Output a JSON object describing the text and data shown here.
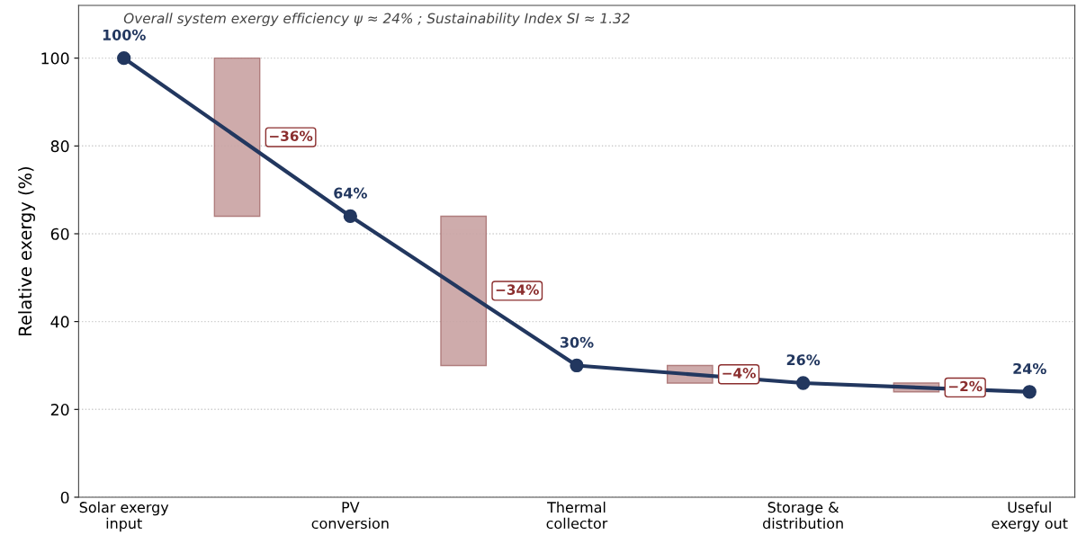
{
  "chart_data": {
    "type": "line",
    "ylabel": "Relative exergy (%)",
    "annotations": [
      "Overall system exergy efficiency ψ ≈ 24% ; Sustainability Index SI ≈ 1.32",
      "−36%",
      "−34%",
      "−4%",
      "−2%"
    ],
    "categories": [
      "Solar exergy\ninput",
      null,
      "PV\nconversion",
      null,
      "Thermal\ncollector",
      null,
      "Storage &\ndistribution",
      null,
      "Useful\nexergy out"
    ],
    "ylim": [
      0,
      112
    ],
    "yticks": [
      0,
      20,
      40,
      60,
      80,
      100
    ],
    "grid": "y",
    "marker": "circle",
    "line_style": "solid",
    "series": [
      {
        "type": "bar",
        "color": "#c9a3a3",
        "base": [
          null,
          100,
          null,
          64,
          null,
          30,
          null,
          26,
          null
        ],
        "values": [
          null,
          -36,
          null,
          -34,
          null,
          -4,
          null,
          -2,
          null
        ]
      },
      {
        "color": "#22375f",
        "values": [
          100,
          null,
          64,
          null,
          30,
          null,
          26,
          null,
          24
        ],
        "value_labels": [
          "100%",
          null,
          "64%",
          null,
          "30%",
          null,
          "26%",
          null,
          "24%"
        ]
      }
    ]
  }
}
